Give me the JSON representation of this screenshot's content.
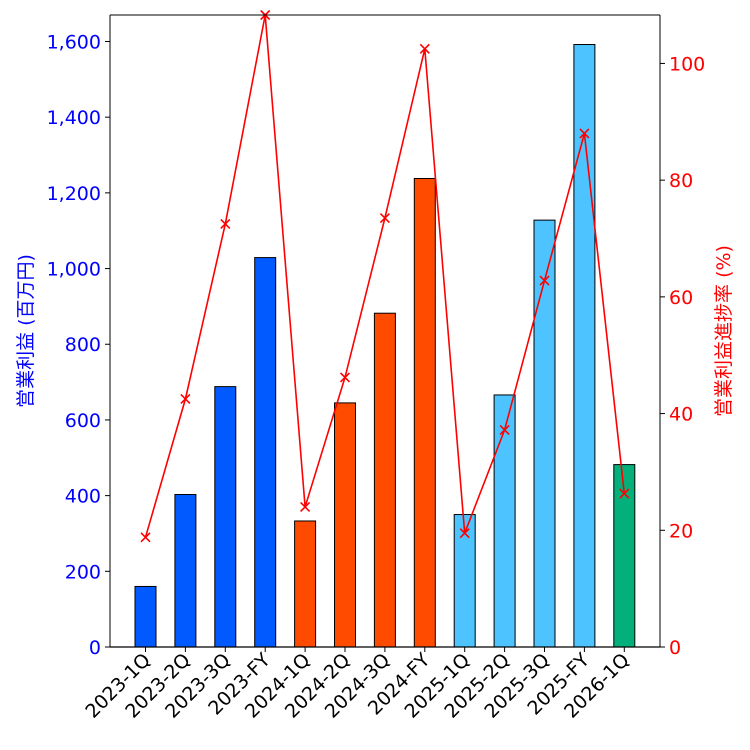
{
  "chart_data": {
    "type": "bar",
    "categories": [
      "2023-1Q",
      "2023-2Q",
      "2023-3Q",
      "2023-FY",
      "2024-1Q",
      "2024-2Q",
      "2024-3Q",
      "2024-FY",
      "2025-1Q",
      "2025-2Q",
      "2025-3Q",
      "2025-FY",
      "2026-1Q"
    ],
    "series": [
      {
        "name": "営業利益",
        "axis": "left",
        "type": "bar",
        "values": [
          160,
          403,
          688,
          1029,
          333,
          645,
          882,
          1238,
          350,
          666,
          1128,
          1592,
          482
        ],
        "colors": [
          "#005aff",
          "#005aff",
          "#005aff",
          "#005aff",
          "#ff4b00",
          "#ff4b00",
          "#ff4b00",
          "#ff4b00",
          "#4dc4ff",
          "#4dc4ff",
          "#4dc4ff",
          "#4dc4ff",
          "#03af7a"
        ]
      },
      {
        "name": "営業利益進捗率",
        "axis": "right",
        "type": "line",
        "color": "#ff0000",
        "values": [
          18.8,
          42.5,
          72.5,
          108.3,
          24.0,
          46.2,
          73.5,
          102.5,
          19.5,
          37.2,
          62.8,
          88.0,
          26.3
        ]
      }
    ],
    "ylabel_left": "営業利益 (百万円)",
    "ylabel_right": "営業利益進捗率 (%)",
    "ylim_left": [
      0,
      1670
    ],
    "ylim_right": [
      0,
      108.3
    ],
    "yticks_left": [
      0,
      200,
      400,
      600,
      800,
      1000,
      1200,
      1400,
      1600
    ],
    "yticklabels_left": [
      "0",
      "200",
      "400",
      "600",
      "800",
      "1,000",
      "1,200",
      "1,400",
      "1,600"
    ],
    "yticks_right": [
      0,
      20,
      40,
      60,
      80,
      100
    ],
    "yticklabels_right": [
      "0",
      "20",
      "40",
      "60",
      "80",
      "100"
    ],
    "left_axis_color": "#0000ff",
    "right_axis_color": "#ff0000"
  }
}
